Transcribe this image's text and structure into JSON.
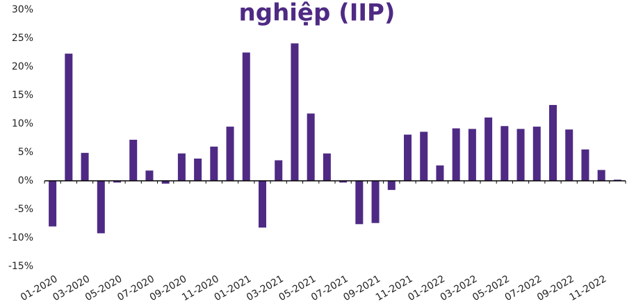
{
  "chart_data": {
    "type": "bar",
    "title": "nghiệp (IIP)",
    "categories": [
      "01-2020",
      null,
      "03-2020",
      null,
      "05-2020",
      null,
      "07-2020",
      null,
      "09-2020",
      null,
      "11-2020",
      null,
      "01-2021",
      null,
      "03-2021",
      null,
      "05-2021",
      null,
      "07-2021",
      null,
      "09-2021",
      null,
      "11-2021",
      null,
      "01-2022",
      null,
      "03-2022",
      null,
      "05-2022",
      null,
      "07-2022",
      null,
      "09-2022",
      null,
      "11-2022",
      null
    ],
    "values": [
      -8.0,
      22.3,
      4.9,
      -9.2,
      -0.3,
      7.2,
      1.8,
      -0.5,
      4.8,
      3.9,
      6.0,
      9.5,
      22.5,
      -8.2,
      3.6,
      24.1,
      11.8,
      4.8,
      -0.3,
      -7.6,
      -7.4,
      -1.6,
      8.1,
      8.6,
      2.7,
      9.2,
      9.1,
      11.1,
      9.6,
      9.1,
      9.5,
      13.3,
      9.0,
      5.5,
      1.9,
      0.2
    ],
    "color": "#4e2a84",
    "ylim": [
      -15,
      30
    ],
    "yticks": [
      {
        "value": -15,
        "label": "-15%"
      },
      {
        "value": -10,
        "label": "-10%"
      },
      {
        "value": -5,
        "label": "-5%"
      },
      {
        "value": 0,
        "label": "0%"
      },
      {
        "value": 5,
        "label": "5%"
      },
      {
        "value": 10,
        "label": "10%"
      },
      {
        "value": 15,
        "label": "15%"
      },
      {
        "value": 20,
        "label": "20%"
      },
      {
        "value": 25,
        "label": "25%"
      },
      {
        "value": 30,
        "label": "30%"
      }
    ],
    "grid": false
  }
}
